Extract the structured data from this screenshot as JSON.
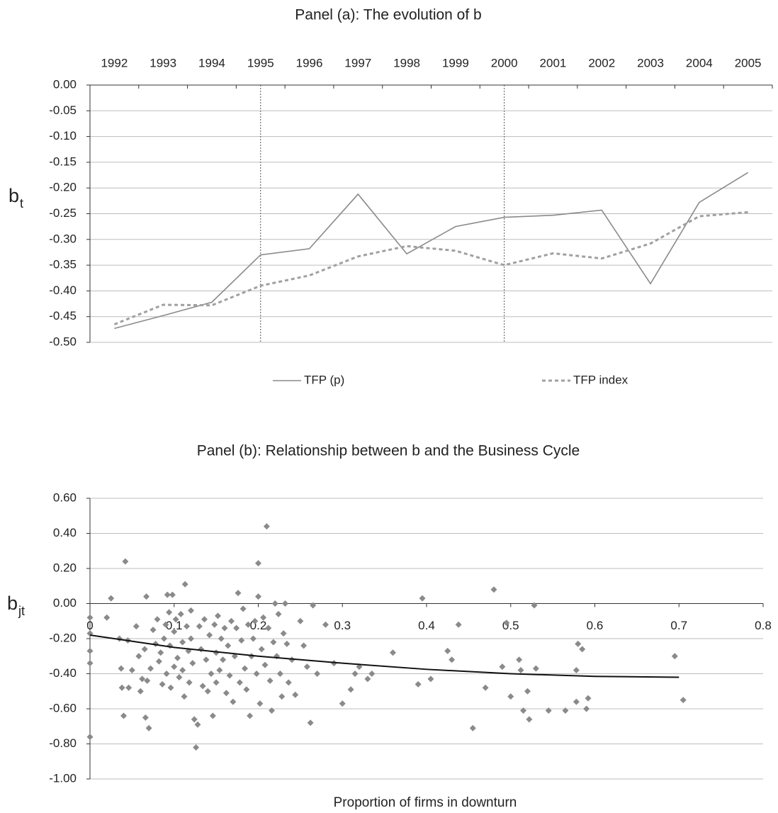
{
  "chart_data": [
    {
      "type": "line",
      "title": "Panel (a): The evolution of b",
      "ylabel": "b",
      "ylabel_sub": "t",
      "categories": [
        "1992",
        "1993",
        "1994",
        "1995",
        "1996",
        "1997",
        "1998",
        "1999",
        "2000",
        "2001",
        "2002",
        "2003",
        "2004",
        "2005"
      ],
      "series": [
        {
          "name": "TFP (p)",
          "color": "#8a8a8a",
          "dash": false,
          "values": [
            -0.473,
            -0.448,
            -0.422,
            -0.33,
            -0.318,
            -0.212,
            -0.328,
            -0.275,
            -0.257,
            -0.253,
            -0.243,
            -0.386,
            -0.228,
            -0.17
          ]
        },
        {
          "name": "TFP index",
          "color": "#a0a0a0",
          "dash": true,
          "values": [
            -0.465,
            -0.427,
            -0.428,
            -0.39,
            -0.37,
            -0.333,
            -0.313,
            -0.322,
            -0.35,
            -0.327,
            -0.337,
            -0.308,
            -0.255,
            -0.247
          ]
        }
      ],
      "vlines": [
        "1995",
        "2000"
      ],
      "ylim": [
        -0.5,
        0
      ],
      "yticks": [
        {
          "value": 0,
          "label": "0.00"
        },
        {
          "value": -0.05,
          "label": "-0.05"
        },
        {
          "value": -0.1,
          "label": "-0.10"
        },
        {
          "value": -0.15,
          "label": "-0.15"
        },
        {
          "value": -0.2,
          "label": "-0.20"
        },
        {
          "value": -0.25,
          "label": "-0.25"
        },
        {
          "value": -0.3,
          "label": "-0.30"
        },
        {
          "value": -0.35,
          "label": "-0.35"
        },
        {
          "value": -0.4,
          "label": "-0.40"
        },
        {
          "value": -0.45,
          "label": "-0.45"
        },
        {
          "value": -0.5,
          "label": "-0.50"
        }
      ],
      "grid": true,
      "legend": "bottom"
    },
    {
      "type": "scatter",
      "title": "Panel (b): Relationship between b and the Business Cycle",
      "ylabel": "b",
      "ylabel_sub": "jt",
      "xlabel": "Proportion of firms in downturn",
      "points": {
        "color": "#8a8a8a",
        "x": [
          0,
          0,
          0,
          0,
          0,
          0.02,
          0.025,
          0.042,
          0.035,
          0.037,
          0.038,
          0.04,
          0.045,
          0.046,
          0.05,
          0.055,
          0.058,
          0.06,
          0.062,
          0.065,
          0.066,
          0.067,
          0.068,
          0.07,
          0.072,
          0.075,
          0.078,
          0.08,
          0.082,
          0.084,
          0.086,
          0.088,
          0.09,
          0.091,
          0.092,
          0.094,
          0.095,
          0.096,
          0.098,
          0.1,
          0.1,
          0.102,
          0.104,
          0.106,
          0.108,
          0.11,
          0.11,
          0.112,
          0.113,
          0.115,
          0.117,
          0.118,
          0.12,
          0.12,
          0.122,
          0.124,
          0.126,
          0.128,
          0.13,
          0.132,
          0.134,
          0.136,
          0.138,
          0.14,
          0.142,
          0.144,
          0.146,
          0.148,
          0.15,
          0.15,
          0.152,
          0.154,
          0.156,
          0.158,
          0.16,
          0.162,
          0.164,
          0.166,
          0.168,
          0.17,
          0.172,
          0.174,
          0.176,
          0.178,
          0.18,
          0.182,
          0.184,
          0.186,
          0.188,
          0.19,
          0.192,
          0.194,
          0.196,
          0.198,
          0.2,
          0.2,
          0.202,
          0.204,
          0.206,
          0.208,
          0.21,
          0.212,
          0.214,
          0.216,
          0.218,
          0.22,
          0.222,
          0.224,
          0.226,
          0.228,
          0.23,
          0.232,
          0.234,
          0.236,
          0.24,
          0.244,
          0.25,
          0.254,
          0.258,
          0.262,
          0.265,
          0.27,
          0.28,
          0.29,
          0.3,
          0.31,
          0.315,
          0.32,
          0.33,
          0.335,
          0.36,
          0.39,
          0.395,
          0.405,
          0.425,
          0.43,
          0.438,
          0.455,
          0.47,
          0.48,
          0.49,
          0.495,
          0.5,
          0.51,
          0.512,
          0.515,
          0.52,
          0.522,
          0.528,
          0.53,
          0.545,
          0.565,
          0.578,
          0.578,
          0.58,
          0.585,
          0.59,
          0.592,
          0.695,
          0.705
        ],
        "values": [
          -0.76,
          -0.08,
          -0.17,
          -0.27,
          -0.34,
          -0.08,
          0.03,
          0.24,
          -0.2,
          -0.37,
          -0.48,
          -0.64,
          -0.21,
          -0.48,
          -0.38,
          -0.13,
          -0.3,
          -0.5,
          -0.43,
          -0.26,
          -0.65,
          0.04,
          -0.44,
          -0.71,
          -0.37,
          -0.15,
          -0.23,
          -0.09,
          -0.33,
          -0.28,
          -0.46,
          -0.2,
          -0.12,
          -0.4,
          0.05,
          -0.05,
          -0.24,
          -0.48,
          0.05,
          -0.36,
          -0.16,
          -0.09,
          -0.31,
          -0.42,
          -0.06,
          -0.22,
          -0.38,
          -0.53,
          0.11,
          -0.13,
          -0.27,
          -0.45,
          -0.2,
          -0.04,
          -0.34,
          -0.66,
          -0.82,
          -0.69,
          -0.13,
          -0.26,
          -0.47,
          -0.09,
          -0.32,
          -0.5,
          -0.18,
          -0.4,
          -0.64,
          -0.12,
          -0.28,
          -0.45,
          -0.07,
          -0.38,
          -0.2,
          -0.32,
          -0.14,
          -0.51,
          -0.24,
          -0.41,
          -0.1,
          -0.56,
          -0.3,
          -0.14,
          0.06,
          -0.45,
          -0.21,
          -0.03,
          -0.37,
          -0.49,
          -0.12,
          -0.64,
          -0.3,
          -0.2,
          -0.1,
          -0.4,
          0.23,
          0.04,
          -0.57,
          -0.26,
          -0.08,
          -0.35,
          0.44,
          -0.14,
          -0.44,
          -0.61,
          -0.22,
          0,
          -0.3,
          -0.06,
          -0.4,
          -0.53,
          -0.17,
          0,
          -0.23,
          -0.45,
          -0.32,
          -0.52,
          -0.1,
          -0.24,
          -0.36,
          -0.68,
          -0.01,
          -0.4,
          -0.12,
          -0.34,
          -0.57,
          -0.49,
          -0.4,
          -0.36,
          -0.43,
          -0.4,
          -0.28,
          -0.46,
          0.03,
          -0.43,
          -0.27,
          -0.32,
          -0.12,
          -0.71,
          -0.48,
          0.08,
          -0.36,
          -0.11,
          -0.53,
          -0.32,
          -0.38,
          -0.61,
          -0.5,
          -0.66,
          -0.01,
          -0.37,
          -0.61,
          -0.61,
          -0.56,
          -0.38,
          -0.23,
          -0.26,
          -0.6,
          -0.54,
          -0.3,
          -0.55
        ]
      },
      "fit": {
        "color": "#111111",
        "x": [
          0,
          0.1,
          0.2,
          0.3,
          0.4,
          0.5,
          0.6,
          0.7
        ],
        "values": [
          -0.18,
          -0.25,
          -0.3,
          -0.34,
          -0.375,
          -0.4,
          -0.415,
          -0.42
        ]
      },
      "xlim": [
        0,
        0.8
      ],
      "xticks": [
        0,
        0.1,
        0.2,
        0.3,
        0.4,
        0.5,
        0.6,
        0.7,
        0.8
      ],
      "ylim": [
        -1,
        0.6
      ],
      "yticks": [
        {
          "value": 0.6,
          "label": "0.60"
        },
        {
          "value": 0.4,
          "label": "0.40"
        },
        {
          "value": 0.2,
          "label": "0.20"
        },
        {
          "value": 0,
          "label": "0.00"
        },
        {
          "value": -0.2,
          "label": "-0.20"
        },
        {
          "value": -0.4,
          "label": "-0.40"
        },
        {
          "value": -0.6,
          "label": "-0.60"
        },
        {
          "value": -0.8,
          "label": "-0.80"
        },
        {
          "value": -1,
          "label": "-1.00"
        }
      ],
      "grid": true
    }
  ]
}
